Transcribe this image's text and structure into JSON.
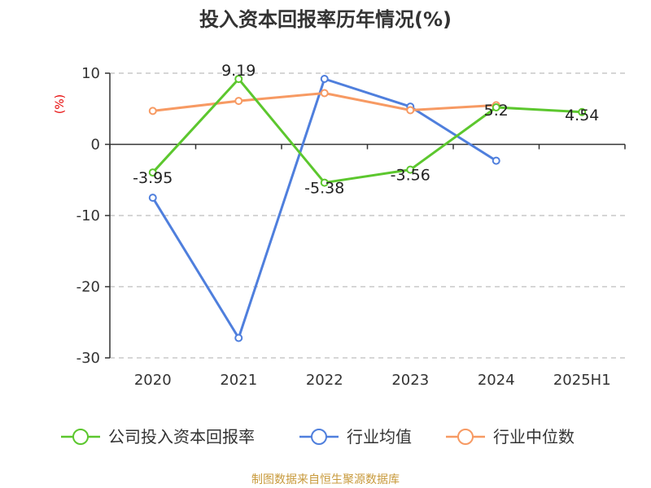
{
  "chart_data": {
    "type": "line",
    "title": "投入资本回报率历年情况(%)",
    "ylabel": "(%)",
    "xlabel": "",
    "categories": [
      "2020",
      "2021",
      "2022",
      "2023",
      "2024",
      "2025H1"
    ],
    "ylim": [
      -30,
      10
    ],
    "yticks": [
      10,
      0,
      -10,
      -20,
      -30
    ],
    "grid": true,
    "legend_position": "bottom",
    "series": [
      {
        "name": "公司投入资本回报率",
        "color": "#5cc72e",
        "values": [
          -3.95,
          9.19,
          -5.38,
          -3.56,
          5.2,
          4.54
        ],
        "labels": [
          "-3.95",
          "9.19",
          "-5.38",
          "-3.56",
          "5.2",
          "4.54"
        ]
      },
      {
        "name": "行业均值",
        "color": "#4f7fdd",
        "values": [
          -7.5,
          -27.2,
          9.2,
          5.3,
          -2.3,
          null
        ]
      },
      {
        "name": "行业中位数",
        "color": "#f79a63",
        "values": [
          4.7,
          6.1,
          7.2,
          4.8,
          5.5,
          null
        ]
      }
    ]
  },
  "source": "制图数据来自恒生聚源数据库"
}
